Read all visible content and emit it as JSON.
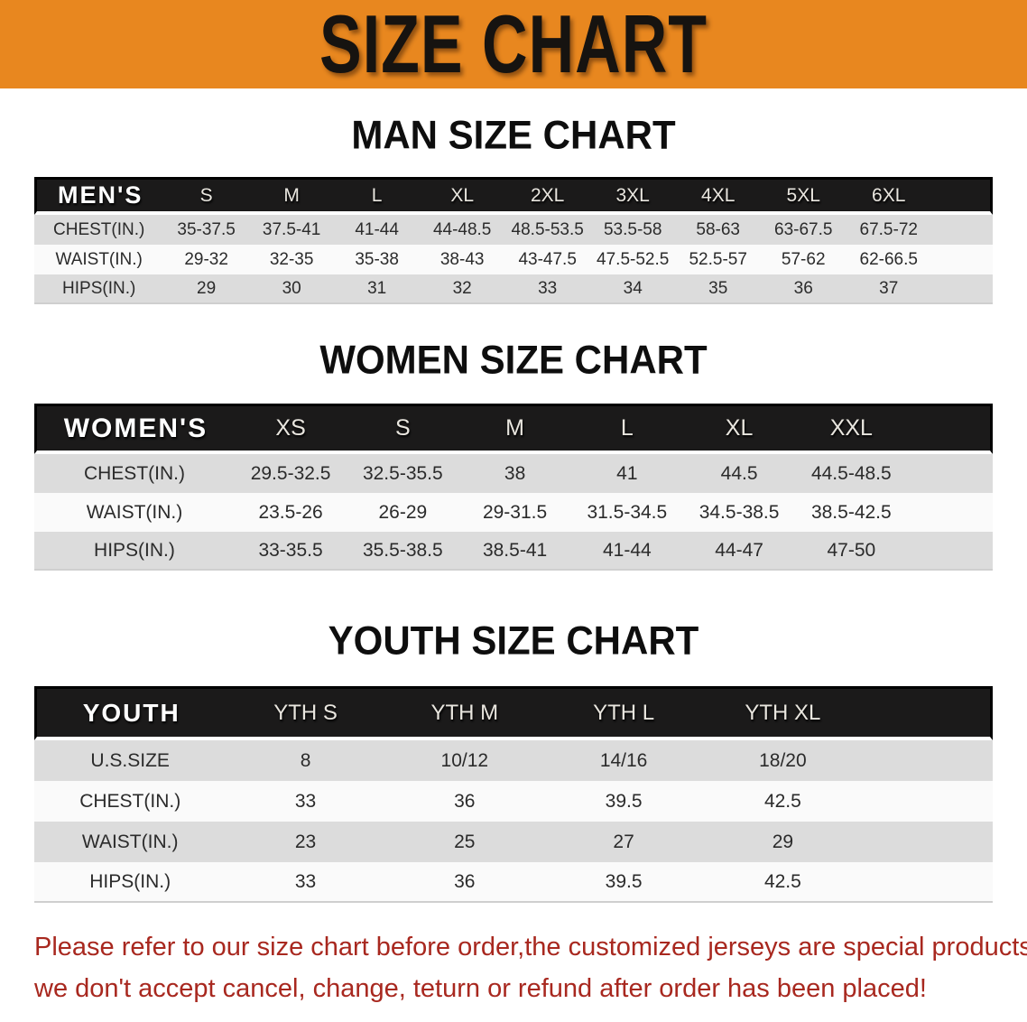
{
  "banner": {
    "title": "SIZE CHART"
  },
  "colors": {
    "banner_bg": "#e8871f",
    "header_bar": "#1b1a1a",
    "row_gray": "#dcdcdc",
    "row_white": "#fafafa",
    "footer_red": "#a8281f"
  },
  "sections": [
    {
      "id": "men",
      "heading": "MAN SIZE CHART",
      "table": {
        "header": [
          "MEN'S",
          "S",
          "M",
          "L",
          "XL",
          "2XL",
          "3XL",
          "4XL",
          "5XL",
          "6XL"
        ],
        "rows": [
          [
            "CHEST(IN.)",
            "35-37.5",
            "37.5-41",
            "41-44",
            "44-48.5",
            "48.5-53.5",
            "53.5-58",
            "58-63",
            "63-67.5",
            "67.5-72"
          ],
          [
            "WAIST(IN.)",
            "29-32",
            "32-35",
            "35-38",
            "38-43",
            "43-47.5",
            "47.5-52.5",
            "52.5-57",
            "57-62",
            "62-66.5"
          ],
          [
            "HIPS(IN.)",
            "29",
            "30",
            "31",
            "32",
            "33",
            "34",
            "35",
            "36",
            "37"
          ]
        ]
      }
    },
    {
      "id": "women",
      "heading": "WOMEN SIZE CHART",
      "table": {
        "header": [
          "WOMEN'S",
          "XS",
          "S",
          "M",
          "L",
          "XL",
          "XXL"
        ],
        "rows": [
          [
            "CHEST(IN.)",
            "29.5-32.5",
            "32.5-35.5",
            "38",
            "41",
            "44.5",
            "44.5-48.5"
          ],
          [
            "WAIST(IN.)",
            "23.5-26",
            "26-29",
            "29-31.5",
            "31.5-34.5",
            "34.5-38.5",
            "38.5-42.5"
          ],
          [
            "HIPS(IN.)",
            "33-35.5",
            "35.5-38.5",
            "38.5-41",
            "41-44",
            "44-47",
            "47-50"
          ]
        ]
      }
    },
    {
      "id": "youth",
      "heading": "YOUTH SIZE CHART",
      "table": {
        "header": [
          "YOUTH",
          "YTH S",
          "YTH M",
          "YTH L",
          "YTH XL"
        ],
        "rows": [
          [
            "U.S.SIZE",
            "8",
            "10/12",
            "14/16",
            "18/20"
          ],
          [
            "CHEST(IN.)",
            "33",
            "36",
            "39.5",
            "42.5"
          ],
          [
            "WAIST(IN.)",
            "23",
            "25",
            "27",
            "29"
          ],
          [
            "HIPS(IN.)",
            "33",
            "36",
            "39.5",
            "42.5"
          ]
        ]
      }
    }
  ],
  "footer": {
    "lines": [
      "Please refer to our size chart before order,the customized jerseys are special products,",
      "we don't accept cancel, change, teturn or refund after order has been placed!"
    ]
  }
}
